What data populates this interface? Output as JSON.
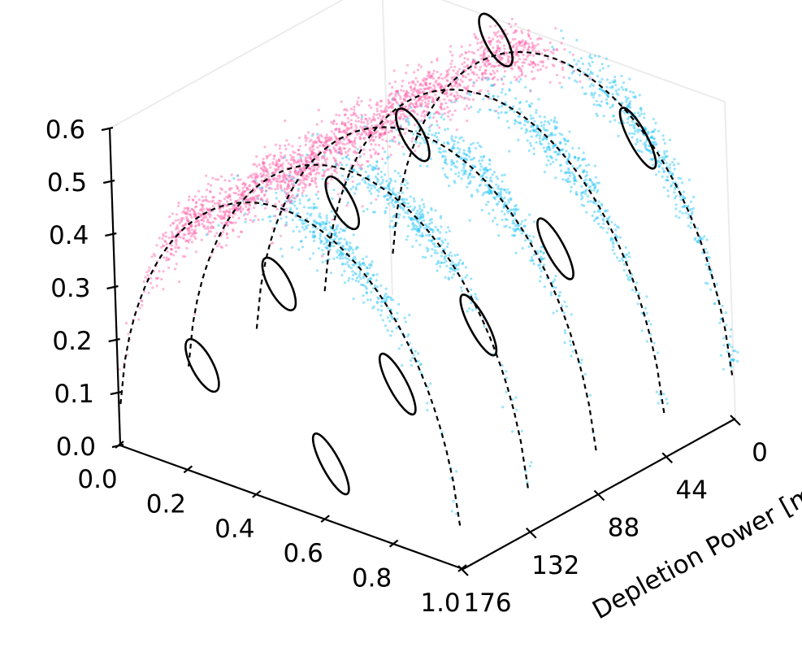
{
  "chart_data": {
    "type": "scatter",
    "projection": "3d",
    "title": "",
    "axes": {
      "vertical": {
        "label": "",
        "ticks": [
          "0.0",
          "0.1",
          "0.2",
          "0.3",
          "0.4",
          "0.5",
          "0.6"
        ],
        "range": [
          0,
          0.6
        ]
      },
      "front": {
        "label": "",
        "ticks": [
          "0.0",
          "0.2",
          "0.4",
          "0.6",
          "0.8",
          "1.0"
        ],
        "range": [
          0,
          1
        ]
      },
      "depth": {
        "label": "Depletion Power [m",
        "ticks": [
          "0",
          "44",
          "88",
          "132",
          "176"
        ],
        "range": [
          0,
          176
        ]
      }
    },
    "series": [
      {
        "color": "#ff5fa8",
        "marker": "point"
      },
      {
        "color": "#1ec3f8",
        "marker": "point"
      }
    ],
    "depletion_levels": [
      {
        "power": 176,
        "clusters": [
          {
            "x": 0.25,
            "y": 0.21,
            "series": 0
          },
          {
            "x": 0.62,
            "y": 0.11,
            "series": 1
          }
        ]
      },
      {
        "power": 132,
        "clusters": [
          {
            "x": 0.28,
            "y": 0.3,
            "series": 0
          },
          {
            "x": 0.62,
            "y": 0.19,
            "series": 1
          }
        ]
      },
      {
        "power": 88,
        "clusters": [
          {
            "x": 0.27,
            "y": 0.38,
            "series": 0
          },
          {
            "x": 0.66,
            "y": 0.24,
            "series": 1
          }
        ]
      },
      {
        "power": 44,
        "clusters": [
          {
            "x": 0.28,
            "y": 0.44,
            "series": 0
          },
          {
            "x": 0.69,
            "y": 0.32,
            "series": 1
          }
        ]
      },
      {
        "power": 0,
        "clusters": [
          {
            "x": 0.33,
            "y": 0.56,
            "series": 0
          },
          {
            "x": 0.74,
            "y": 0.47,
            "series": 1
          }
        ]
      }
    ],
    "reference_curves": {
      "style": "dashed",
      "color": "#000000"
    },
    "grid": false,
    "legend": "none"
  }
}
